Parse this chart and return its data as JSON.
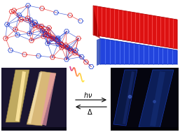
{
  "bg_color": "#ffffff",
  "red_color": "#dd1111",
  "blue_color": "#1133cc",
  "layer_red": "#dd1111",
  "layer_blue": "#2244dd",
  "red_dark": "#aa0000",
  "blue_dark": "#0022aa",
  "wave_colors": [
    "#cc4488",
    "#dd6633",
    "#ee9922",
    "#cc3366",
    "#aa2244"
  ],
  "hv_text": "$h\\nu$",
  "delta_text": "$\\Delta$",
  "arrow_color": "#000000",
  "crystal_bg_left": "#1a1530",
  "crystal_bg_right": "#050510",
  "crystal_left_main": "#b8a060",
  "crystal_left_highlight": "#e8d8a0",
  "crystal_left_pink": "#e090a0",
  "crystal_right_dark": "#081840",
  "crystal_right_mid": "#0a2060"
}
